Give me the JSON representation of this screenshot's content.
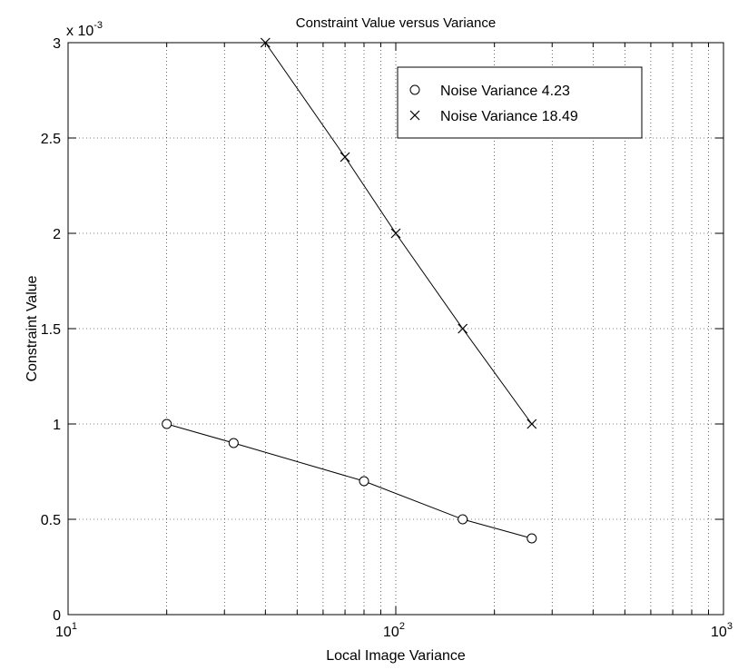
{
  "chart_data": {
    "type": "line",
    "title": "Constraint Value versus Variance",
    "xlabel": "Local Image Variance",
    "ylabel": "Constraint Value",
    "x_scale": "log",
    "xlim": [
      10,
      1000
    ],
    "ylim": [
      0,
      3
    ],
    "y_multiplier_label": "x 10",
    "y_multiplier_exponent": "-3",
    "x_ticks": [
      {
        "value": 10,
        "base": "10",
        "exp": "1"
      },
      {
        "value": 100,
        "base": "10",
        "exp": "2"
      },
      {
        "value": 1000,
        "base": "10",
        "exp": "3"
      }
    ],
    "y_ticks": [
      {
        "value": 0,
        "label": "0"
      },
      {
        "value": 0.5,
        "label": "0.5"
      },
      {
        "value": 1,
        "label": "1"
      },
      {
        "value": 1.5,
        "label": "1.5"
      },
      {
        "value": 2,
        "label": "2"
      },
      {
        "value": 2.5,
        "label": "2.5"
      },
      {
        "value": 3,
        "label": "3"
      }
    ],
    "grid": true,
    "legend_position": "top-right",
    "series": [
      {
        "name": "Noise Variance 4.23",
        "marker": "circle",
        "color": "#000000",
        "x": [
          20,
          32,
          80,
          160,
          260
        ],
        "y": [
          1.0,
          0.9,
          0.7,
          0.5,
          0.4
        ]
      },
      {
        "name": "Noise Variance 18.49",
        "marker": "x",
        "color": "#000000",
        "x": [
          40,
          70,
          100,
          160,
          260
        ],
        "y": [
          3.0,
          2.4,
          2.0,
          1.5,
          1.0
        ]
      }
    ]
  }
}
